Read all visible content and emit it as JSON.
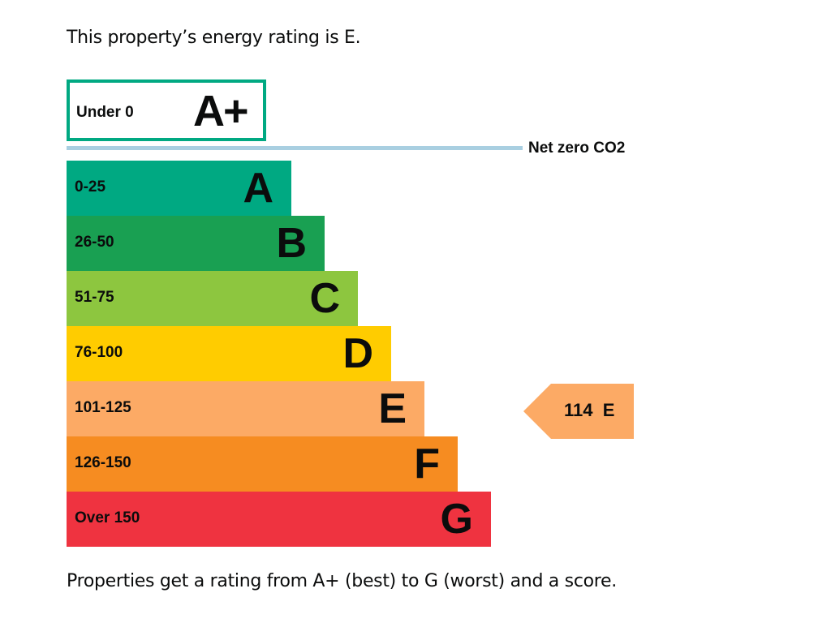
{
  "intro_text": "This property’s energy rating is E.",
  "footer_text": "Properties get a rating from A+ (best) to G (worst) and a score.",
  "chart_data": {
    "type": "bar",
    "title": "",
    "net_zero_label": "Net zero CO2",
    "top_band": {
      "range": "Under 0",
      "letter": "A+",
      "color": "#00a982"
    },
    "bands": [
      {
        "range": "0-25",
        "letter": "A",
        "color": "#00a982",
        "rank": 1
      },
      {
        "range": "26-50",
        "letter": "B",
        "color": "#19a052",
        "rank": 2
      },
      {
        "range": "51-75",
        "letter": "C",
        "color": "#8dc63f",
        "rank": 3
      },
      {
        "range": "76-100",
        "letter": "D",
        "color": "#ffcc00",
        "rank": 4
      },
      {
        "range": "101-125",
        "letter": "E",
        "color": "#fcaa65",
        "rank": 5
      },
      {
        "range": "126-150",
        "letter": "F",
        "color": "#f68c21",
        "rank": 6
      },
      {
        "range": "Over 150",
        "letter": "G",
        "color": "#ef3340",
        "rank": 7
      }
    ],
    "current": {
      "score": 114,
      "letter": "E",
      "label": "114  E",
      "color": "#fcaa65"
    }
  }
}
